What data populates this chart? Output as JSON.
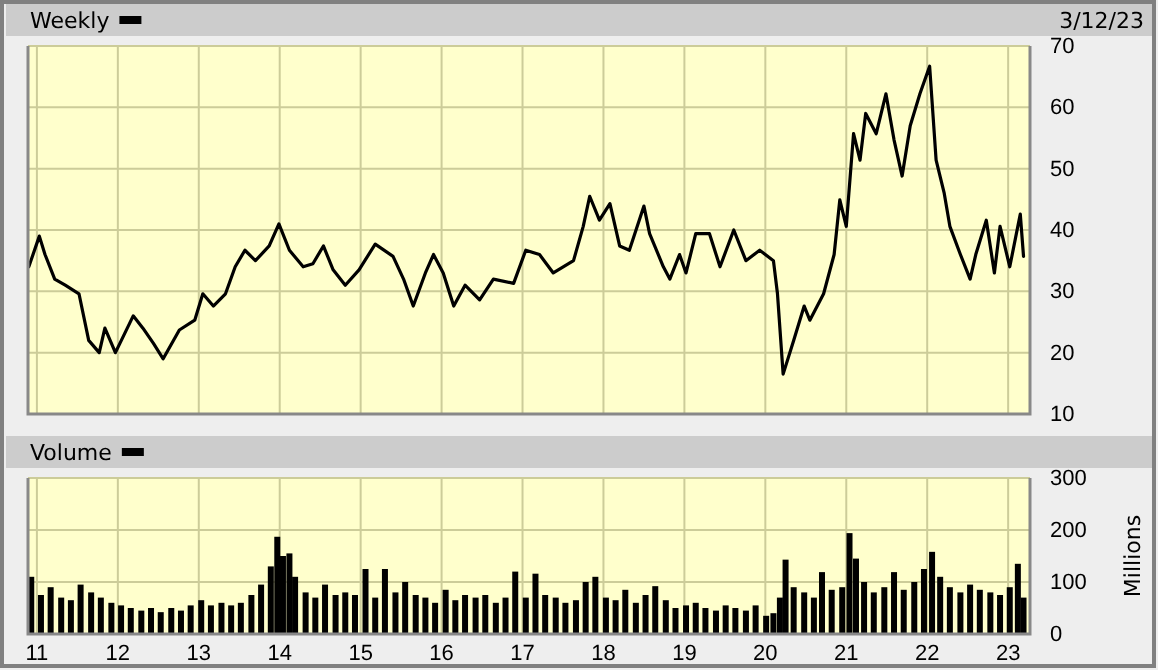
{
  "chart_data": [
    {
      "type": "line",
      "subtitle": "3/12/23",
      "legend": "top left",
      "grid": true,
      "tick_labels": "y",
      "xlim": [
        2010.89,
        2023.27
      ],
      "xticks": [
        2011,
        2012,
        2013,
        2014,
        2015,
        2016,
        2017,
        2018,
        2019,
        2020,
        2021,
        2022,
        2023
      ],
      "ylim": [
        10,
        70
      ],
      "yticks": [
        10,
        20,
        30,
        40,
        50,
        60,
        70
      ],
      "series": [
        {
          "name": "Weekly",
          "color": "#000000",
          "x": [
            2010.9,
            2011.03,
            2011.1,
            2011.22,
            2011.35,
            2011.52,
            2011.64,
            2011.77,
            2011.84,
            2011.97,
            2012.19,
            2012.31,
            2012.44,
            2012.56,
            2012.76,
            2012.95,
            2013.05,
            2013.18,
            2013.33,
            2013.45,
            2013.57,
            2013.7,
            2013.87,
            2013.99,
            2014.12,
            2014.29,
            2014.41,
            2014.54,
            2014.66,
            2014.81,
            2014.98,
            2015.18,
            2015.4,
            2015.53,
            2015.65,
            2015.8,
            2015.9,
            2016.02,
            2016.15,
            2016.29,
            2016.47,
            2016.64,
            2016.89,
            2017.04,
            2017.21,
            2017.38,
            2017.63,
            2017.75,
            2017.83,
            2017.95,
            2018.08,
            2018.2,
            2018.32,
            2018.5,
            2018.57,
            2018.74,
            2018.82,
            2018.94,
            2019.02,
            2019.14,
            2019.31,
            2019.44,
            2019.61,
            2019.76,
            2019.93,
            2020.1,
            2020.15,
            2020.22,
            2020.35,
            2020.48,
            2020.55,
            2020.72,
            2020.85,
            2020.92,
            2021.0,
            2021.09,
            2021.17,
            2021.24,
            2021.37,
            2021.49,
            2021.59,
            2021.69,
            2021.79,
            2021.91,
            2022.03,
            2022.11,
            2022.21,
            2022.28,
            2022.41,
            2022.53,
            2022.6,
            2022.73,
            2022.83,
            2022.9,
            2023.02,
            2023.15,
            2023.19
          ],
          "values": [
            34,
            39,
            36,
            32,
            31,
            29.6,
            22,
            20,
            24,
            20,
            26,
            24,
            21.5,
            19,
            23.7,
            25.3,
            29.6,
            27.6,
            29.6,
            34,
            36.7,
            35,
            37.4,
            41,
            36.7,
            34,
            34.5,
            37.4,
            33.5,
            31,
            33.5,
            37.7,
            35.7,
            32,
            27.6,
            33,
            36,
            33,
            27.6,
            31,
            28.6,
            32,
            31.3,
            36.7,
            36,
            33,
            35,
            40.6,
            45.5,
            41.6,
            44.3,
            37.4,
            36.7,
            43.9,
            39.4,
            34,
            32,
            36,
            33,
            39.4,
            39.4,
            34,
            40,
            35,
            36.7,
            35,
            29.6,
            16.5,
            22,
            27.6,
            25.3,
            29.6,
            36,
            44.9,
            40.6,
            55.7,
            51.4,
            59,
            55.7,
            62.2,
            54.7,
            48.8,
            57,
            62.2,
            66.7,
            51.4,
            46,
            40.6,
            36,
            32,
            36,
            41.6,
            33,
            40.6,
            34,
            42.6,
            35.7
          ]
        }
      ]
    },
    {
      "type": "bar",
      "legend": "top left",
      "grid": true,
      "ylabel": "Millions",
      "xlim": [
        2010.89,
        2023.27
      ],
      "xticks": [
        {
          "value": 2011,
          "label": "11"
        },
        {
          "value": 2012,
          "label": "12"
        },
        {
          "value": 2013,
          "label": "13"
        },
        {
          "value": 2014,
          "label": "14"
        },
        {
          "value": 2015,
          "label": "15"
        },
        {
          "value": 2016,
          "label": "16"
        },
        {
          "value": 2017,
          "label": "17"
        },
        {
          "value": 2018,
          "label": "18"
        },
        {
          "value": 2019,
          "label": "19"
        },
        {
          "value": 2020,
          "label": "20"
        },
        {
          "value": 2021,
          "label": "21"
        },
        {
          "value": 2022,
          "label": "22"
        },
        {
          "value": 2023,
          "label": "23"
        }
      ],
      "ylim": [
        0,
        300
      ],
      "yticks": [
        0,
        100,
        200,
        300
      ],
      "series": [
        {
          "name": "Volume",
          "color": "#000000",
          "x": [
            2010.93,
            2011.05,
            2011.17,
            2011.3,
            2011.42,
            2011.54,
            2011.67,
            2011.79,
            2011.92,
            2012.04,
            2012.16,
            2012.29,
            2012.41,
            2012.53,
            2012.66,
            2012.78,
            2012.9,
            2013.03,
            2013.15,
            2013.28,
            2013.4,
            2013.52,
            2013.65,
            2013.77,
            2013.89,
            2013.97,
            2014.04,
            2014.12,
            2014.19,
            2014.32,
            2014.44,
            2014.56,
            2014.69,
            2014.81,
            2014.93,
            2015.06,
            2015.18,
            2015.3,
            2015.43,
            2015.55,
            2015.68,
            2015.8,
            2015.92,
            2016.05,
            2016.17,
            2016.29,
            2016.42,
            2016.54,
            2016.67,
            2016.79,
            2016.91,
            2017.04,
            2017.16,
            2017.28,
            2017.41,
            2017.53,
            2017.66,
            2017.78,
            2017.9,
            2018.03,
            2018.15,
            2018.27,
            2018.4,
            2018.52,
            2018.64,
            2018.77,
            2018.89,
            2019.02,
            2019.14,
            2019.26,
            2019.39,
            2019.51,
            2019.63,
            2019.76,
            2019.88,
            2020.01,
            2020.1,
            2020.18,
            2020.25,
            2020.35,
            2020.48,
            2020.6,
            2020.7,
            2020.82,
            2020.95,
            2021.04,
            2021.12,
            2021.22,
            2021.34,
            2021.47,
            2021.59,
            2021.71,
            2021.84,
            2021.96,
            2022.06,
            2022.16,
            2022.28,
            2022.41,
            2022.53,
            2022.65,
            2022.78,
            2022.9,
            2023.02,
            2023.12,
            2023.19
          ],
          "values": [
            110,
            75,
            90,
            70,
            65,
            95,
            80,
            70,
            60,
            55,
            50,
            45,
            50,
            42,
            50,
            45,
            55,
            65,
            55,
            60,
            55,
            60,
            75,
            95,
            130,
            187,
            150,
            155,
            110,
            80,
            70,
            95,
            75,
            80,
            75,
            125,
            70,
            125,
            80,
            100,
            75,
            70,
            60,
            85,
            65,
            75,
            70,
            75,
            60,
            70,
            120,
            70,
            116,
            75,
            70,
            60,
            65,
            100,
            110,
            70,
            65,
            85,
            60,
            75,
            92,
            65,
            50,
            55,
            60,
            50,
            45,
            55,
            50,
            45,
            55,
            35,
            40,
            70,
            143,
            90,
            80,
            70,
            119,
            85,
            90,
            194,
            145,
            100,
            80,
            90,
            119,
            85,
            100,
            125,
            158,
            110,
            90,
            80,
            95,
            85,
            80,
            75,
            90,
            135,
            70
          ]
        }
      ]
    }
  ]
}
